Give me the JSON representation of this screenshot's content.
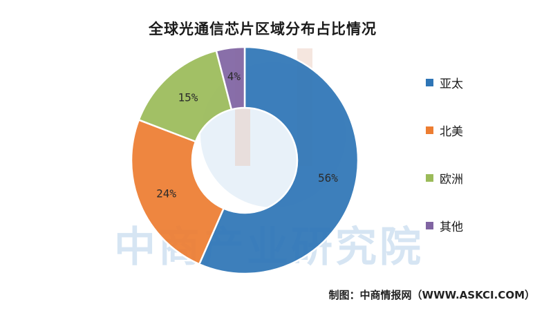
{
  "chart_data": {
    "type": "pie",
    "title": "全球光通信芯片区域分布占比情况",
    "categories": [
      "亚太",
      "北美",
      "欧洲",
      "其他"
    ],
    "values": [
      56,
      24,
      15,
      4
    ],
    "labels": [
      "56%",
      "24%",
      "15%",
      "4%"
    ],
    "colors": [
      "#2e75b6",
      "#ed7d31",
      "#9bbb59",
      "#8064a2"
    ],
    "donut": true,
    "legend_position": "right"
  },
  "source": "制图：中商情报网（WWW.ASKCI.COM）",
  "watermark": {
    "text": "中商产业研究院",
    "color": "#c9ddef"
  }
}
